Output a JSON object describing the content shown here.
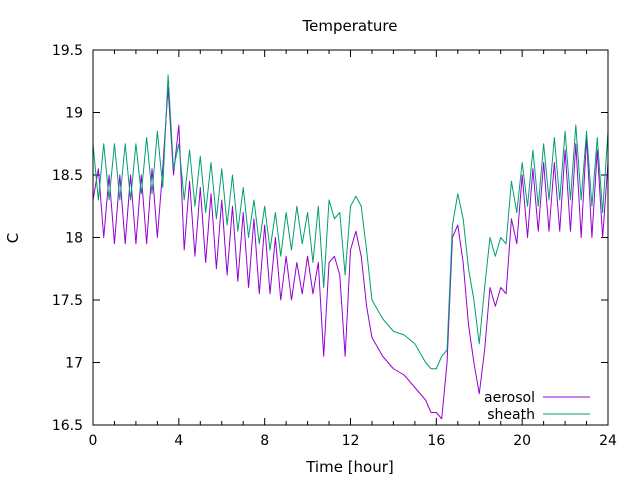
{
  "chart_data": {
    "type": "line",
    "title": "Temperature",
    "xlabel": "Time [hour]",
    "ylabel": "C",
    "xlim": [
      0,
      24
    ],
    "ylim": [
      16.5,
      19.5
    ],
    "x_ticks": [
      "0",
      "4",
      "8",
      "12",
      "16",
      "20",
      "24"
    ],
    "y_ticks": [
      "16.5",
      "17",
      "17.5",
      "18",
      "18.5",
      "19",
      "19.5"
    ],
    "grid": false,
    "legend_position": "bottom-right",
    "series": [
      {
        "name": "aerosol",
        "color": "#9400d3",
        "points": [
          [
            0,
            18.3
          ],
          [
            0.25,
            18.55
          ],
          [
            0.5,
            18.0
          ],
          [
            0.75,
            18.5
          ],
          [
            1.0,
            17.95
          ],
          [
            1.25,
            18.5
          ],
          [
            1.5,
            17.95
          ],
          [
            1.75,
            18.5
          ],
          [
            2.0,
            17.95
          ],
          [
            2.25,
            18.5
          ],
          [
            2.5,
            17.95
          ],
          [
            2.75,
            18.55
          ],
          [
            3.0,
            18.0
          ],
          [
            3.25,
            18.55
          ],
          [
            3.5,
            19.2
          ],
          [
            3.75,
            18.5
          ],
          [
            4.0,
            18.9
          ],
          [
            4.25,
            17.9
          ],
          [
            4.5,
            18.45
          ],
          [
            4.75,
            17.85
          ],
          [
            5.0,
            18.4
          ],
          [
            5.25,
            17.8
          ],
          [
            5.5,
            18.35
          ],
          [
            5.75,
            17.75
          ],
          [
            6.0,
            18.3
          ],
          [
            6.25,
            17.7
          ],
          [
            6.5,
            18.25
          ],
          [
            6.75,
            17.65
          ],
          [
            7.0,
            18.2
          ],
          [
            7.25,
            17.6
          ],
          [
            7.5,
            18.15
          ],
          [
            7.75,
            17.55
          ],
          [
            8.0,
            18.1
          ],
          [
            8.25,
            17.55
          ],
          [
            8.5,
            18.0
          ],
          [
            8.75,
            17.5
          ],
          [
            9.0,
            17.85
          ],
          [
            9.25,
            17.5
          ],
          [
            9.5,
            17.8
          ],
          [
            9.75,
            17.55
          ],
          [
            10.0,
            17.85
          ],
          [
            10.25,
            17.55
          ],
          [
            10.5,
            17.8
          ],
          [
            10.75,
            17.05
          ],
          [
            11.0,
            17.8
          ],
          [
            11.25,
            17.85
          ],
          [
            11.5,
            17.7
          ],
          [
            11.75,
            17.05
          ],
          [
            12.0,
            17.9
          ],
          [
            12.25,
            18.05
          ],
          [
            12.5,
            17.85
          ],
          [
            12.75,
            17.45
          ],
          [
            13.0,
            17.2
          ],
          [
            13.5,
            17.05
          ],
          [
            14.0,
            16.95
          ],
          [
            14.5,
            16.9
          ],
          [
            15.0,
            16.8
          ],
          [
            15.5,
            16.7
          ],
          [
            15.75,
            16.6
          ],
          [
            16.0,
            16.6
          ],
          [
            16.25,
            16.55
          ],
          [
            16.5,
            17.0
          ],
          [
            16.75,
            18.0
          ],
          [
            17.0,
            18.1
          ],
          [
            17.25,
            17.8
          ],
          [
            17.5,
            17.3
          ],
          [
            17.75,
            17.0
          ],
          [
            18.0,
            16.75
          ],
          [
            18.25,
            17.1
          ],
          [
            18.5,
            17.6
          ],
          [
            18.75,
            17.45
          ],
          [
            19.0,
            17.6
          ],
          [
            19.25,
            17.55
          ],
          [
            19.5,
            18.15
          ],
          [
            19.75,
            17.95
          ],
          [
            20.0,
            18.5
          ],
          [
            20.25,
            18.0
          ],
          [
            20.5,
            18.55
          ],
          [
            20.75,
            18.05
          ],
          [
            21.0,
            18.6
          ],
          [
            21.25,
            18.05
          ],
          [
            21.5,
            18.6
          ],
          [
            21.75,
            18.05
          ],
          [
            22.0,
            18.7
          ],
          [
            22.25,
            18.05
          ],
          [
            22.5,
            18.75
          ],
          [
            22.75,
            18.0
          ],
          [
            23.0,
            18.8
          ],
          [
            23.25,
            18.0
          ],
          [
            23.5,
            18.7
          ],
          [
            23.75,
            18.0
          ],
          [
            24.0,
            18.6
          ]
        ]
      },
      {
        "name": "sheath",
        "color": "#009e73",
        "points": [
          [
            0,
            18.75
          ],
          [
            0.25,
            18.3
          ],
          [
            0.5,
            18.75
          ],
          [
            0.75,
            18.3
          ],
          [
            1.0,
            18.75
          ],
          [
            1.25,
            18.3
          ],
          [
            1.5,
            18.75
          ],
          [
            1.75,
            18.3
          ],
          [
            2.0,
            18.75
          ],
          [
            2.25,
            18.35
          ],
          [
            2.5,
            18.8
          ],
          [
            2.75,
            18.35
          ],
          [
            3.0,
            18.85
          ],
          [
            3.25,
            18.4
          ],
          [
            3.5,
            19.3
          ],
          [
            3.75,
            18.55
          ],
          [
            4.0,
            18.75
          ],
          [
            4.25,
            18.3
          ],
          [
            4.5,
            18.7
          ],
          [
            4.75,
            18.25
          ],
          [
            5.0,
            18.65
          ],
          [
            5.25,
            18.2
          ],
          [
            5.5,
            18.6
          ],
          [
            5.75,
            18.15
          ],
          [
            6.0,
            18.55
          ],
          [
            6.25,
            18.1
          ],
          [
            6.5,
            18.5
          ],
          [
            6.75,
            18.05
          ],
          [
            7.0,
            18.4
          ],
          [
            7.25,
            18.0
          ],
          [
            7.5,
            18.3
          ],
          [
            7.75,
            17.95
          ],
          [
            8.0,
            18.25
          ],
          [
            8.25,
            17.9
          ],
          [
            8.5,
            18.2
          ],
          [
            8.75,
            17.85
          ],
          [
            9.0,
            18.2
          ],
          [
            9.25,
            17.9
          ],
          [
            9.5,
            18.25
          ],
          [
            9.75,
            17.95
          ],
          [
            10.0,
            18.2
          ],
          [
            10.25,
            17.8
          ],
          [
            10.5,
            18.25
          ],
          [
            10.75,
            17.6
          ],
          [
            11.0,
            18.3
          ],
          [
            11.25,
            18.15
          ],
          [
            11.5,
            18.2
          ],
          [
            11.75,
            17.7
          ],
          [
            12.0,
            18.25
          ],
          [
            12.25,
            18.33
          ],
          [
            12.5,
            18.25
          ],
          [
            12.75,
            17.9
          ],
          [
            13.0,
            17.5
          ],
          [
            13.5,
            17.35
          ],
          [
            14.0,
            17.25
          ],
          [
            14.5,
            17.22
          ],
          [
            15.0,
            17.15
          ],
          [
            15.5,
            17.0
          ],
          [
            15.75,
            16.95
          ],
          [
            16.0,
            16.95
          ],
          [
            16.25,
            17.05
          ],
          [
            16.5,
            17.1
          ],
          [
            16.75,
            18.1
          ],
          [
            17.0,
            18.35
          ],
          [
            17.25,
            18.15
          ],
          [
            17.5,
            17.75
          ],
          [
            17.75,
            17.5
          ],
          [
            18.0,
            17.15
          ],
          [
            18.25,
            17.6
          ],
          [
            18.5,
            18.0
          ],
          [
            18.75,
            17.85
          ],
          [
            19.0,
            18.0
          ],
          [
            19.25,
            17.95
          ],
          [
            19.5,
            18.45
          ],
          [
            19.75,
            18.2
          ],
          [
            20.0,
            18.6
          ],
          [
            20.25,
            18.25
          ],
          [
            20.5,
            18.7
          ],
          [
            20.75,
            18.25
          ],
          [
            21.0,
            18.75
          ],
          [
            21.25,
            18.3
          ],
          [
            21.5,
            18.8
          ],
          [
            21.75,
            18.3
          ],
          [
            22.0,
            18.85
          ],
          [
            22.25,
            18.3
          ],
          [
            22.5,
            18.9
          ],
          [
            22.75,
            18.3
          ],
          [
            23.0,
            18.85
          ],
          [
            23.25,
            18.25
          ],
          [
            23.5,
            18.8
          ],
          [
            23.75,
            18.2
          ],
          [
            24.0,
            18.85
          ]
        ]
      }
    ]
  }
}
